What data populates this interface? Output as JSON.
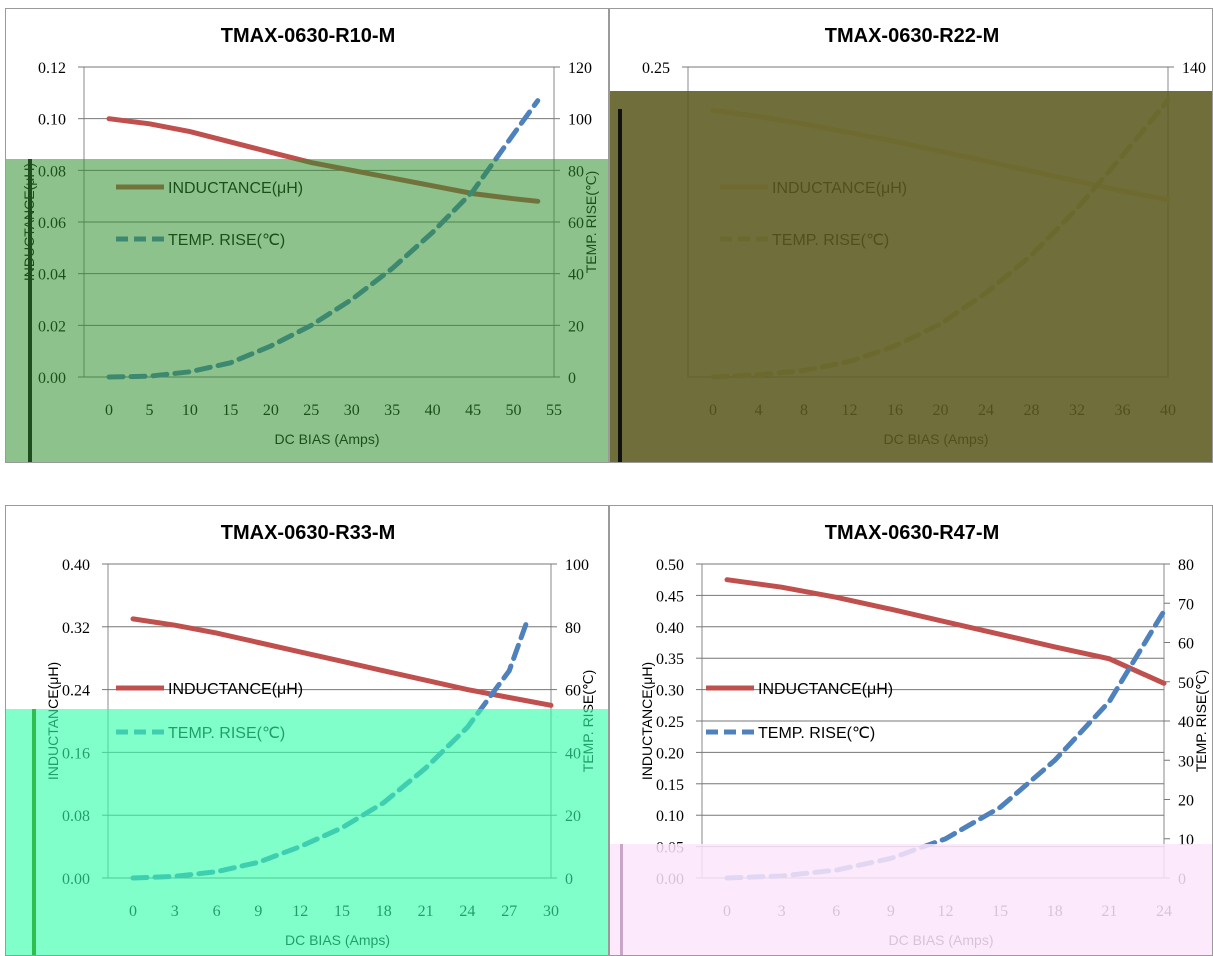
{
  "chart_data": [
    {
      "type": "line",
      "title": "TMAX-0630-R10-M",
      "xlabel": "DC BIAS (Amps)",
      "ylabel": "INDUCTANCE(μH)",
      "y2label": "TEMP. RISE(℃)",
      "xlim": [
        0,
        55
      ],
      "xticks": [
        "0",
        "5",
        "10",
        "15",
        "20",
        "25",
        "30",
        "35",
        "40",
        "45",
        "50",
        "55"
      ],
      "ylim": [
        0,
        0.12
      ],
      "yticks": [
        "0.00",
        "0.02",
        "0.04",
        "0.06",
        "0.08",
        "0.10",
        "0.12"
      ],
      "y2lim": [
        0,
        120
      ],
      "y2ticks": [
        "0",
        "20",
        "40",
        "60",
        "80",
        "100",
        "120"
      ],
      "series": [
        {
          "name": "INDUCTANCE(μH)",
          "axis": "left",
          "style": "solid",
          "color": "#c0504d",
          "x": [
            0,
            5,
            10,
            15,
            20,
            25,
            30,
            35,
            40,
            45,
            50,
            53
          ],
          "y": [
            0.1,
            0.098,
            0.095,
            0.091,
            0.087,
            0.083,
            0.08,
            0.077,
            0.074,
            0.071,
            0.069,
            0.068
          ]
        },
        {
          "name": "TEMP. RISE(℃)",
          "axis": "right",
          "style": "dash",
          "color": "#4f81bd",
          "x": [
            0,
            5,
            10,
            15,
            20,
            25,
            30,
            35,
            40,
            45,
            50,
            53
          ],
          "y": [
            0,
            0.3,
            2,
            5.5,
            12,
            20,
            30,
            42,
            56,
            72,
            94,
            107
          ]
        }
      ],
      "legend": "left-middle"
    },
    {
      "type": "line",
      "title": "TMAX-0630-R22-M",
      "xlabel": "DC BIAS (Amps)",
      "ylabel": "",
      "y2label": "",
      "xlim": [
        0,
        40
      ],
      "xticks": [
        "0",
        "4",
        "8",
        "12",
        "16",
        "20",
        "24",
        "28",
        "32",
        "36",
        "40"
      ],
      "ylim": [
        0,
        0.25
      ],
      "yticks": [
        "0.25"
      ],
      "y2lim": [
        0,
        140
      ],
      "y2ticks": [
        "140"
      ],
      "series": [
        {
          "name": "INDUCTANCE(μH)",
          "axis": "left",
          "style": "solid",
          "color": "#f5dfa0",
          "x": [
            0,
            4,
            8,
            12,
            16,
            20,
            24,
            28,
            32,
            36,
            40
          ],
          "y": [
            0.215,
            0.21,
            0.204,
            0.197,
            0.19,
            0.182,
            0.174,
            0.166,
            0.158,
            0.15,
            0.143
          ]
        },
        {
          "name": "TEMP. RISE(℃)",
          "axis": "right",
          "style": "dash",
          "color": "#ddd2a0",
          "x": [
            0,
            4,
            8,
            12,
            16,
            20,
            24,
            28,
            32,
            36,
            40
          ],
          "y": [
            0,
            1,
            3,
            7,
            14,
            24,
            38,
            55,
            76,
            100,
            125
          ]
        }
      ],
      "legend": "left-middle"
    },
    {
      "type": "line",
      "title": "TMAX-0630-R33-M",
      "xlabel": "DC BIAS (Amps)",
      "ylabel": "INDUCTANCE(μH)",
      "y2label": "TEMP. RISE(℃)",
      "xlim": [
        0,
        30
      ],
      "xticks": [
        "0",
        "3",
        "6",
        "9",
        "12",
        "15",
        "18",
        "21",
        "24",
        "27",
        "30"
      ],
      "ylim": [
        0,
        0.4
      ],
      "yticks": [
        "0.00",
        "0.08",
        "0.16",
        "0.24",
        "0.32",
        "0.40"
      ],
      "y2lim": [
        0,
        100
      ],
      "y2ticks": [
        "0",
        "20",
        "40",
        "60",
        "80",
        "100"
      ],
      "series": [
        {
          "name": "INDUCTANCE(μH)",
          "axis": "left",
          "style": "solid",
          "color": "#c0504d",
          "x": [
            0,
            3,
            6,
            9,
            12,
            15,
            18,
            21,
            24,
            27,
            30
          ],
          "y": [
            0.33,
            0.322,
            0.312,
            0.3,
            0.288,
            0.276,
            0.264,
            0.252,
            0.24,
            0.23,
            0.22
          ]
        },
        {
          "name": "TEMP. RISE(℃)",
          "axis": "right",
          "style": "dash",
          "color": "#4f81bd",
          "x": [
            0,
            3,
            6,
            9,
            12,
            15,
            18,
            21,
            24,
            27,
            28.3
          ],
          "y": [
            0,
            0.5,
            2,
            5,
            10,
            16,
            24,
            35,
            48,
            66,
            82
          ]
        }
      ],
      "legend": "left-middle"
    },
    {
      "type": "line",
      "title": "TMAX-0630-R47-M",
      "xlabel": "DC BIAS (Amps)",
      "ylabel": "INDUCTANCE(μH)",
      "y2label": "TEMP. RISE(℃)",
      "xlim": [
        0,
        24
      ],
      "xticks": [
        "0",
        "3",
        "6",
        "9",
        "12",
        "15",
        "18",
        "21",
        "24"
      ],
      "ylim": [
        0,
        0.5
      ],
      "yticks": [
        "0.00",
        "0.05",
        "0.10",
        "0.15",
        "0.20",
        "0.25",
        "0.30",
        "0.35",
        "0.40",
        "0.45",
        "0.50"
      ],
      "y2lim": [
        0,
        80
      ],
      "y2ticks": [
        "0",
        "10",
        "20",
        "30",
        "40",
        "50",
        "60",
        "70",
        "80"
      ],
      "series": [
        {
          "name": "INDUCTANCE(μH)",
          "axis": "left",
          "style": "solid",
          "color": "#c0504d",
          "x": [
            0,
            3,
            6,
            9,
            12,
            15,
            18,
            21,
            24
          ],
          "y": [
            0.475,
            0.463,
            0.447,
            0.428,
            0.408,
            0.388,
            0.368,
            0.349,
            0.31
          ]
        },
        {
          "name": "TEMP. RISE(℃)",
          "axis": "right",
          "style": "dash",
          "color": "#4f81bd",
          "x": [
            0,
            3,
            6,
            9,
            12,
            15,
            18,
            21,
            24
          ],
          "y": [
            0,
            0.5,
            2,
            5,
            10,
            18,
            30,
            45,
            68
          ]
        }
      ],
      "legend": "left-middle"
    }
  ],
  "colors": {
    "overlay_green": "#2f8f2f",
    "overlay_olive": "#5c5a1f",
    "overlay_aqua": "#33ffaa",
    "overlay_pink": "#fce6fb"
  }
}
